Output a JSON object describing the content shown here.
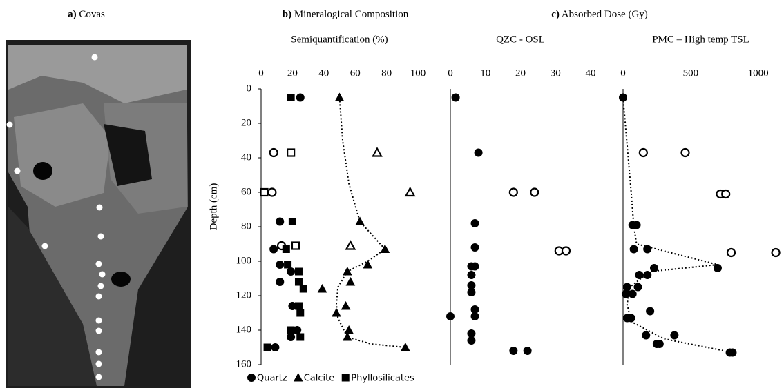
{
  "panels": {
    "a": {
      "label": "a)",
      "title": "Covas"
    },
    "b": {
      "label": "b)",
      "title": "Mineralogical Composition"
    },
    "c": {
      "label": "c)",
      "title": "Absorbed Dose (Gy)"
    }
  },
  "chart_data": [
    {
      "type": "scatter",
      "subtitle": "Semiquantification (%)",
      "ylabel": "Depth (cm)",
      "xlim": [
        0,
        100
      ],
      "xticks": [
        0,
        20,
        40,
        60,
        80,
        100
      ],
      "ylim": [
        0,
        160
      ],
      "yticks": [
        0,
        20,
        40,
        60,
        80,
        100,
        120,
        140,
        160
      ],
      "y_inverted": true,
      "series": [
        {
          "name": "Quartz",
          "marker": "circle",
          "color": "#000000",
          "x": [
            25,
            8,
            7,
            12,
            13,
            8,
            12,
            19,
            12,
            20,
            23,
            19,
            9
          ],
          "y": [
            5,
            37,
            60,
            77,
            91,
            93,
            102,
            106,
            112,
            126,
            140,
            144,
            150
          ],
          "filled": [
            true,
            false,
            false,
            true,
            false,
            true,
            true,
            true,
            true,
            true,
            true,
            true,
            true
          ]
        },
        {
          "name": "Calcite",
          "marker": "triangle",
          "color": "#000000",
          "x": [
            50,
            74,
            95,
            63,
            57,
            79,
            68,
            55,
            57,
            39,
            54,
            48,
            56,
            55,
            92
          ],
          "y": [
            5,
            37,
            60,
            77,
            91,
            93,
            102,
            106,
            112,
            116,
            126,
            130,
            140,
            144,
            150
          ],
          "filled": [
            true,
            false,
            false,
            true,
            false,
            true,
            true,
            true,
            true,
            true,
            true,
            true,
            true,
            true,
            true
          ]
        },
        {
          "name": "Phyllosilicates",
          "marker": "square",
          "color": "#000000",
          "x": [
            19,
            19,
            2,
            20,
            22,
            16,
            17,
            24,
            24,
            27,
            24,
            25,
            19,
            25,
            4
          ],
          "y": [
            5,
            37,
            60,
            77,
            91,
            93,
            102,
            106,
            112,
            116,
            126,
            130,
            140,
            144,
            150
          ],
          "filled": [
            true,
            false,
            false,
            true,
            false,
            true,
            true,
            true,
            true,
            true,
            true,
            true,
            true,
            true,
            true
          ]
        }
      ],
      "trend": {
        "x": [
          50,
          52,
          56,
          63,
          72,
          79,
          68,
          55,
          49,
          48,
          49,
          55,
          70,
          92
        ],
        "y": [
          5,
          30,
          55,
          77,
          86,
          93,
          100,
          106,
          115,
          125,
          133,
          144,
          148,
          150
        ]
      },
      "legend": "bottom"
    },
    {
      "type": "scatter",
      "subtitle": "QZC - OSL",
      "xlim": [
        0,
        40
      ],
      "xticks": [
        0,
        10,
        20,
        30,
        40
      ],
      "ylim": [
        0,
        160
      ],
      "y_inverted": true,
      "series": [
        {
          "marker": "circle",
          "color": "#000000",
          "x": [
            1.5,
            8,
            18,
            24,
            7,
            7,
            31,
            33,
            6,
            7,
            6,
            6,
            6,
            7,
            0,
            7,
            6,
            6,
            18,
            22
          ],
          "y": [
            5,
            37,
            60,
            60,
            78,
            92,
            94,
            94,
            103,
            103,
            108,
            114,
            118,
            128,
            132,
            132,
            142,
            146,
            152,
            152
          ],
          "filled": [
            true,
            true,
            false,
            false,
            true,
            true,
            false,
            false,
            true,
            true,
            true,
            true,
            true,
            true,
            true,
            true,
            true,
            true,
            true,
            true
          ]
        }
      ]
    },
    {
      "type": "scatter",
      "subtitle": "PMC – High temp TSL",
      "xlim": [
        0,
        1150
      ],
      "xticks": [
        0,
        500,
        1000
      ],
      "ylim": [
        0,
        160
      ],
      "y_inverted": true,
      "series": [
        {
          "marker": "circle",
          "color": "#000000",
          "x": [
            0,
            150,
            460,
            720,
            760,
            70,
            100,
            80,
            180,
            800,
            1130,
            700,
            230,
            120,
            180,
            30,
            110,
            20,
            70,
            200,
            30,
            60,
            170,
            380,
            250,
            270,
            790,
            810
          ],
          "y": [
            5,
            37,
            37,
            61,
            61,
            79,
            79,
            93,
            93,
            95,
            95,
            104,
            104,
            108,
            108,
            115,
            115,
            119,
            119,
            129,
            133,
            133,
            143,
            143,
            148,
            148,
            153,
            153
          ],
          "filled": [
            true,
            false,
            false,
            false,
            false,
            true,
            true,
            true,
            true,
            false,
            false,
            true,
            true,
            true,
            true,
            true,
            true,
            true,
            true,
            true,
            true,
            true,
            true,
            true,
            true,
            true,
            true,
            true
          ]
        }
      ],
      "trend": {
        "x": [
          0,
          60,
          80,
          100,
          700,
          200,
          50,
          30,
          60,
          300,
          750
        ],
        "y": [
          5,
          60,
          80,
          90,
          102,
          106,
          115,
          125,
          135,
          145,
          152
        ]
      }
    }
  ]
}
